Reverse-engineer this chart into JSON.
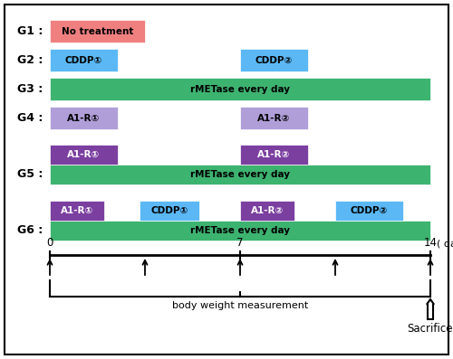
{
  "fig_width": 5.0,
  "fig_height": 3.97,
  "dpi": 100,
  "background_color": "#ffffff",
  "colors": {
    "pink": "#F08080",
    "blue": "#5BB8F5",
    "green": "#3DB370",
    "light_purple": "#B09ED9",
    "dark_purple": "#7B3FA0"
  },
  "day_min": 0,
  "day_max": 14,
  "rows": {
    "G1": [
      {
        "label": "No treatment",
        "day_start": 0,
        "day_end": 3.5,
        "color": "#F08080",
        "text_color": "#000000",
        "layer": 0
      }
    ],
    "G2": [
      {
        "label": "CDDP①",
        "day_start": 0,
        "day_end": 2.5,
        "color": "#5BB8F5",
        "text_color": "#000000",
        "layer": 0
      },
      {
        "label": "CDDP②",
        "day_start": 7.0,
        "day_end": 9.5,
        "color": "#5BB8F5",
        "text_color": "#000000",
        "layer": 0
      }
    ],
    "G3": [
      {
        "label": "rMETase every day",
        "day_start": 0,
        "day_end": 14,
        "color": "#3DB370",
        "text_color": "#000000",
        "layer": 0
      }
    ],
    "G4": [
      {
        "label": "A1-R①",
        "day_start": 0,
        "day_end": 2.5,
        "color": "#B09ED9",
        "text_color": "#000000",
        "layer": 0
      },
      {
        "label": "A1-R②",
        "day_start": 7.0,
        "day_end": 9.5,
        "color": "#B09ED9",
        "text_color": "#000000",
        "layer": 0
      }
    ],
    "G5_top": [
      {
        "label": "A1-R①",
        "day_start": 0,
        "day_end": 2.5,
        "color": "#7B3FA0",
        "text_color": "#ffffff",
        "layer": 1
      },
      {
        "label": "A1-R②",
        "day_start": 7.0,
        "day_end": 9.5,
        "color": "#7B3FA0",
        "text_color": "#ffffff",
        "layer": 1
      }
    ],
    "G5_bot": [
      {
        "label": "rMETase every day",
        "day_start": 0,
        "day_end": 14,
        "color": "#3DB370",
        "text_color": "#000000",
        "layer": 0
      }
    ],
    "G6_top": [
      {
        "label": "A1-R①",
        "day_start": 0,
        "day_end": 2.0,
        "color": "#7B3FA0",
        "text_color": "#ffffff",
        "layer": 1
      },
      {
        "label": "CDDP①",
        "day_start": 3.3,
        "day_end": 5.5,
        "color": "#5BB8F5",
        "text_color": "#000000",
        "layer": 1
      },
      {
        "label": "A1-R②",
        "day_start": 7.0,
        "day_end": 9.0,
        "color": "#7B3FA0",
        "text_color": "#ffffff",
        "layer": 1
      },
      {
        "label": "CDDP②",
        "day_start": 10.5,
        "day_end": 13.0,
        "color": "#5BB8F5",
        "text_color": "#000000",
        "layer": 1
      }
    ],
    "G6_bot": [
      {
        "label": "rMETase every day",
        "day_start": 0,
        "day_end": 14,
        "color": "#3DB370",
        "text_color": "#000000",
        "layer": 0
      }
    ]
  },
  "timeline_arrows_x": [
    0,
    3.5,
    7,
    10.5,
    14
  ],
  "label_body_weight": "body weight measurement",
  "label_sacrifice": "Sacrifice"
}
